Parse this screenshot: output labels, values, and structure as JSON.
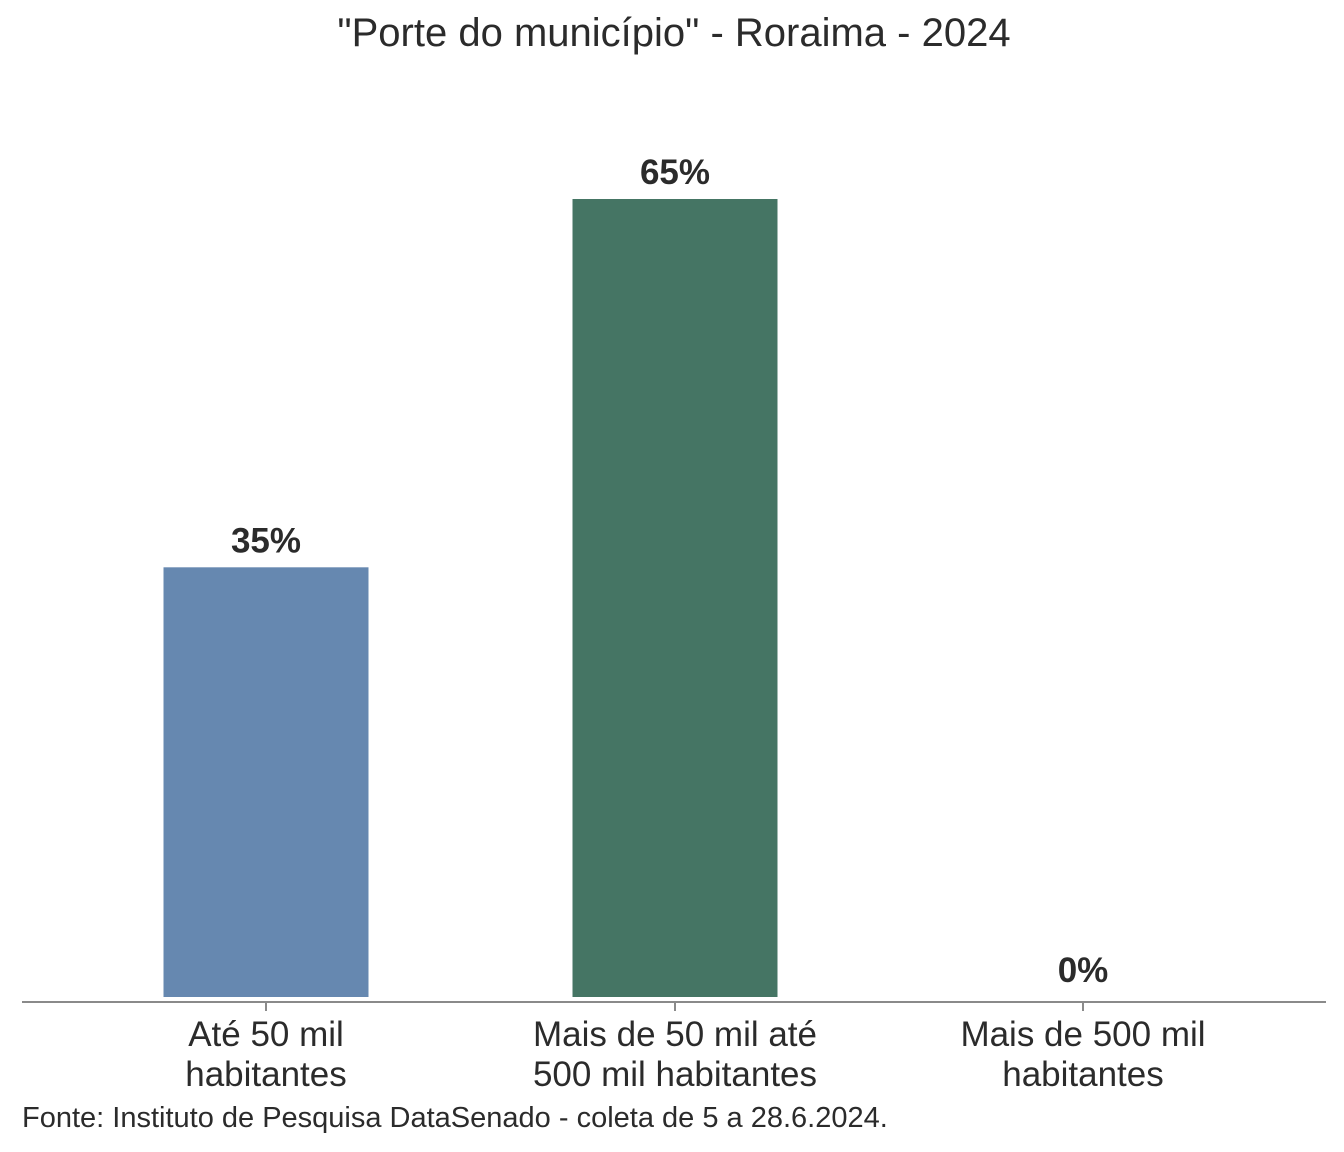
{
  "chart_data": {
    "type": "bar",
    "title": "\"Porte do município\" - Roraima - 2024",
    "categories": [
      [
        "Até 50 mil",
        "habitantes"
      ],
      [
        "Mais de 50 mil até",
        "500 mil habitantes"
      ],
      [
        "Mais de 500 mil",
        "habitantes"
      ]
    ],
    "values": [
      35,
      65,
      0
    ],
    "value_labels": [
      "35%",
      "65%",
      "0%"
    ],
    "colors": [
      "#6688b0",
      "#457564",
      "#8b5a4a"
    ],
    "ylim": [
      0,
      65
    ],
    "grid": false,
    "legend": "none"
  },
  "footer": {
    "source": "Fonte: Instituto de Pesquisa DataSenado - coleta de 5 a 28.6.2024."
  }
}
